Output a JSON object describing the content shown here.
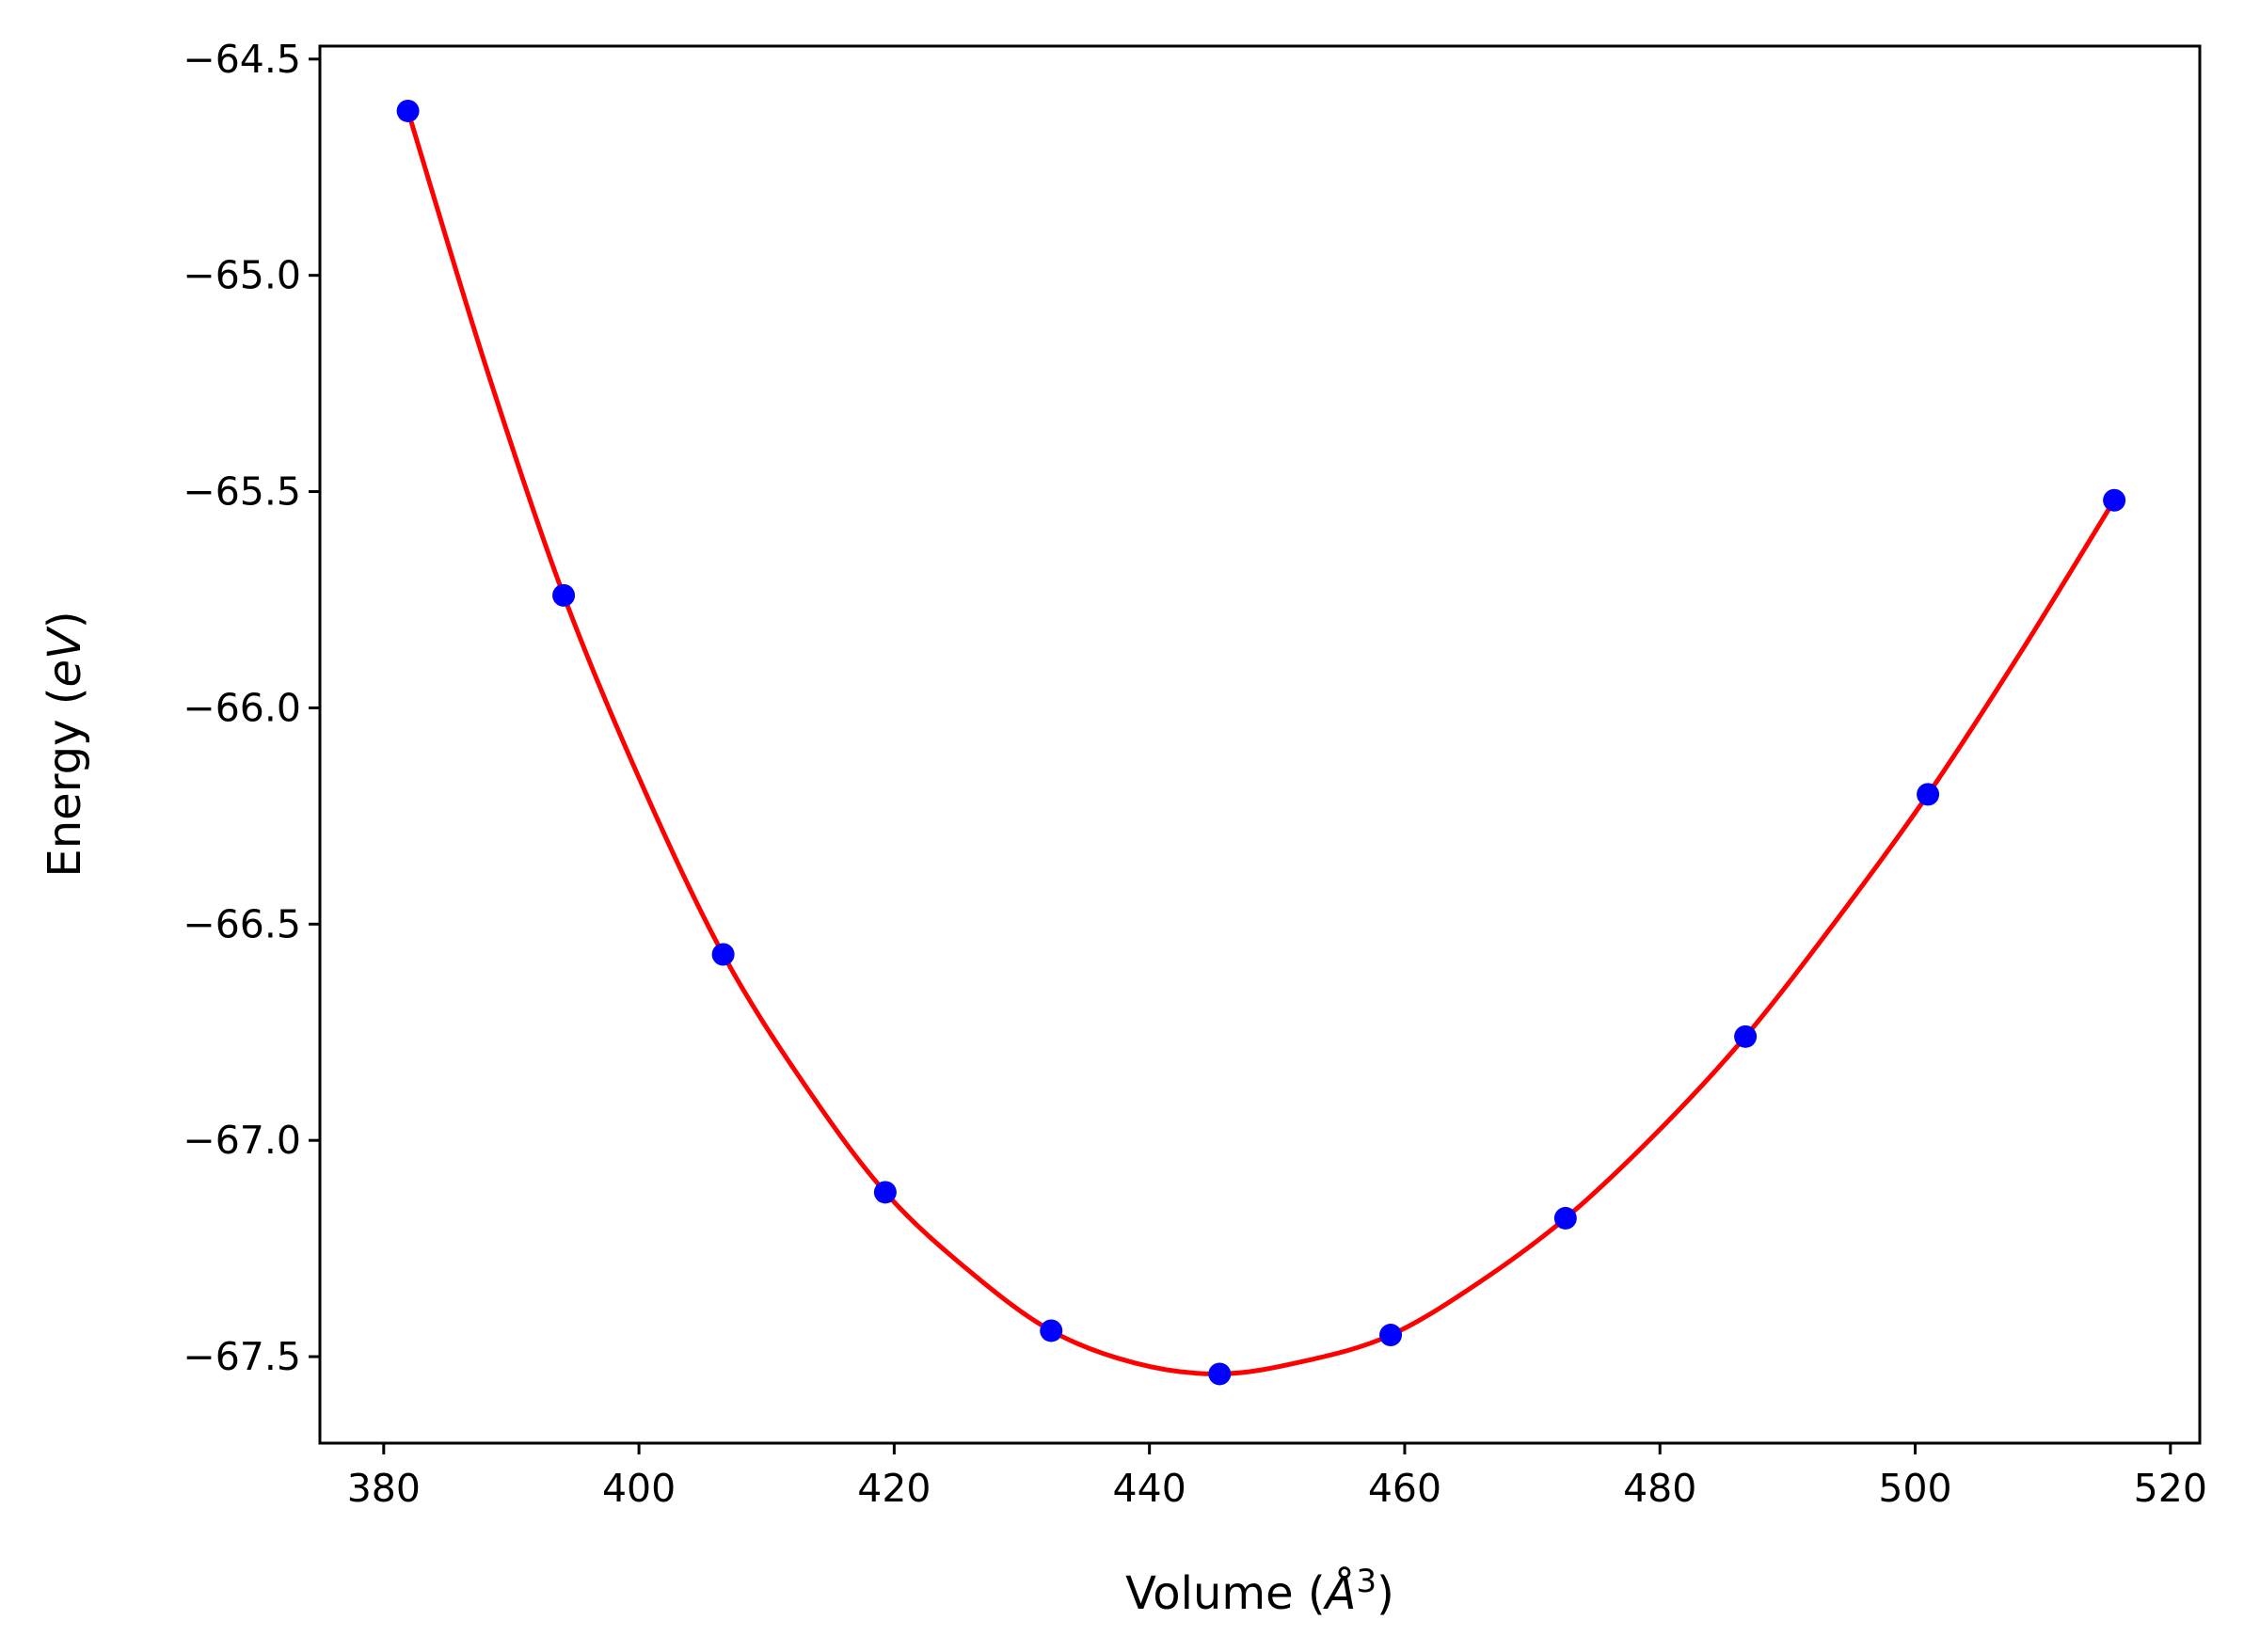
{
  "chart_data": {
    "type": "scatter",
    "title": "",
    "xlabel_text": "Volume (",
    "xlabel_symbol": "Å",
    "xlabel_sup": "3",
    "xlabel_close": ")",
    "ylabel_text": "Energy (",
    "ylabel_symbol": "eV",
    "ylabel_close": ")",
    "xlim": [
      375,
      522.3
    ],
    "ylim": [
      -67.7,
      -64.47
    ],
    "xticks": [
      380,
      400,
      420,
      440,
      460,
      480,
      500,
      520
    ],
    "xtick_labels": [
      "380",
      "400",
      "420",
      "440",
      "460",
      "480",
      "500",
      "520"
    ],
    "yticks": [
      -64.5,
      -65.0,
      -65.5,
      -66.0,
      -66.5,
      -67.0,
      -67.5
    ],
    "ytick_labels": [
      "−64.5",
      "−65.0",
      "−65.5",
      "−66.0",
      "−66.5",
      "−67.0",
      "−67.5"
    ],
    "grid": false,
    "series": [
      {
        "kind": "points",
        "color": "#0000ff",
        "x": [
          381.9,
          394.1,
          406.6,
          419.3,
          432.3,
          445.5,
          458.9,
          472.6,
          486.7,
          501.0,
          515.6
        ],
        "y": [
          -64.62,
          -65.74,
          -66.57,
          -67.12,
          -67.44,
          -67.54,
          -67.45,
          -67.18,
          -66.76,
          -66.2,
          -65.52
        ]
      },
      {
        "kind": "fit-curve",
        "color": "#ff0000",
        "x": [
          381.9,
          388.0,
          394.1,
          400.35,
          406.6,
          412.95,
          419.3,
          425.8,
          432.3,
          438.9,
          445.5,
          452.2,
          458.9,
          465.75,
          472.6,
          479.65,
          486.7,
          493.85,
          501.0,
          508.3,
          515.6
        ],
        "y": [
          -64.62,
          -65.21,
          -65.74,
          -66.185,
          -66.57,
          -66.87,
          -67.12,
          -67.3,
          -67.44,
          -67.515,
          -67.54,
          -67.51,
          -67.45,
          -67.33,
          -67.18,
          -66.985,
          -66.76,
          -66.49,
          -66.2,
          -65.87,
          -65.52
        ]
      }
    ]
  }
}
